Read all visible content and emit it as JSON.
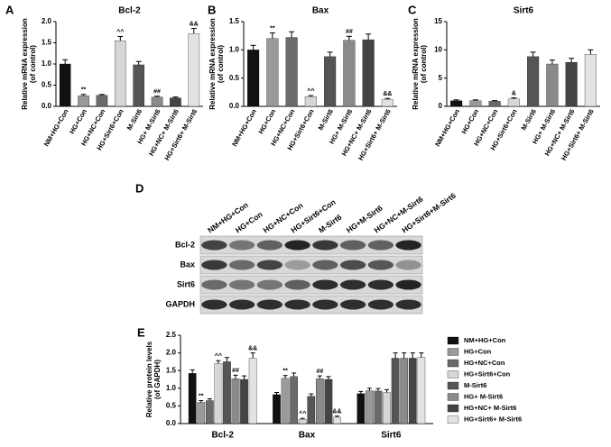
{
  "chart_data": [
    {
      "type": "bar",
      "panel": "A",
      "title": "Bcl-2",
      "ylabel": [
        "Relative mRNA expression",
        "(of control)"
      ],
      "categories": [
        "NM+HG+Con",
        "HG+Con",
        "HG+NC+Con",
        "HG+Sirt6+Con",
        "M-Sirt6",
        "HG+ M-Sirt6",
        "HG+NC+ M-Sirt6",
        "HG+Sirt6+ M-Sirt6"
      ],
      "values": [
        1.0,
        0.25,
        0.26,
        1.55,
        0.98,
        0.22,
        0.2,
        1.72
      ],
      "errors": [
        0.1,
        0.03,
        0.02,
        0.1,
        0.08,
        0.02,
        0.02,
        0.12
      ],
      "annotations": [
        null,
        "**",
        null,
        "^^",
        null,
        "##",
        null,
        "&&"
      ],
      "colors": [
        "#111111",
        "#9a9a9a",
        "#6a6a6a",
        "#d6d6d6",
        "#555555",
        "#8a8a8a",
        "#444444",
        "#e2e2e2"
      ],
      "ylim": [
        0,
        2
      ],
      "yticks": [
        {
          "value": 0,
          "label": "0.0"
        },
        0.5,
        {
          "value": 1,
          "label": "1.0"
        },
        1.5,
        {
          "value": 2,
          "label": "2.0"
        }
      ]
    },
    {
      "type": "bar",
      "panel": "B",
      "title": "Bax",
      "ylabel": [
        "Relative mRNA expression",
        "(of control)"
      ],
      "categories": [
        "NM+HG+Con",
        "HG+Con",
        "HG+NC+Con",
        "HG+Sirt6+Con",
        "M-Sirt6",
        "HG+ M-Sirt6",
        "HG+NC+ M-Sirt6",
        "HG+Sirt6+ M-Sirt6"
      ],
      "values": [
        1.0,
        1.2,
        1.22,
        0.17,
        0.88,
        1.17,
        1.18,
        0.12
      ],
      "errors": [
        0.08,
        0.1,
        0.1,
        0.02,
        0.08,
        0.07,
        0.1,
        0.02
      ],
      "annotations": [
        null,
        "**",
        null,
        "^^",
        null,
        "##",
        null,
        "&&"
      ],
      "colors": [
        "#111111",
        "#9a9a9a",
        "#6a6a6a",
        "#d6d6d6",
        "#555555",
        "#8a8a8a",
        "#444444",
        "#e2e2e2"
      ],
      "ylim": [
        0,
        1.5
      ],
      "yticks": [
        {
          "value": 0,
          "label": "0.0"
        },
        0.5,
        {
          "value": 1,
          "label": "1.0"
        },
        1.5
      ]
    },
    {
      "type": "bar",
      "panel": "C",
      "title": "Sirt6",
      "ylabel": [
        "Relative mRNA expression",
        "(of control)"
      ],
      "categories": [
        "NM+HG+Con",
        "HG+Con",
        "HG+NC+Con",
        "HG+Sirt6+Con",
        "M-Sirt6",
        "HG+ M-Sirt6",
        "HG+NC+ M-Sirt6",
        "HG+Sirt6+ M-Sirt6"
      ],
      "values": [
        1.0,
        1.0,
        0.9,
        1.3,
        8.8,
        7.5,
        7.8,
        9.2
      ],
      "errors": [
        0.15,
        0.15,
        0.12,
        0.2,
        0.8,
        0.7,
        0.7,
        0.8
      ],
      "annotations": [
        null,
        null,
        null,
        "&",
        null,
        null,
        null,
        null
      ],
      "colors": [
        "#111111",
        "#9a9a9a",
        "#6a6a6a",
        "#d6d6d6",
        "#555555",
        "#8a8a8a",
        "#444444",
        "#e2e2e2"
      ],
      "ylim": [
        0,
        15
      ],
      "yticks": [
        0,
        5,
        10,
        15
      ]
    },
    {
      "type": "bar",
      "panel": "E",
      "ylabel": [
        "Relative protein levels",
        "(of GAPDH)"
      ],
      "categories": [
        "Bcl-2",
        "Bax",
        "Sirt6"
      ],
      "series": [
        {
          "name": "NM+HG+Con",
          "color": "#111111",
          "values": [
            1.42,
            0.82,
            0.85
          ],
          "errors": [
            0.1,
            0.06,
            0.06
          ],
          "annotations": [
            null,
            null,
            null
          ]
        },
        {
          "name": "HG+Con",
          "color": "#9a9a9a",
          "values": [
            0.6,
            1.28,
            0.93
          ],
          "errors": [
            0.05,
            0.08,
            0.07
          ],
          "annotations": [
            "**",
            "**",
            null
          ]
        },
        {
          "name": "HG+NC+Con",
          "color": "#6a6a6a",
          "values": [
            0.65,
            1.33,
            0.92
          ],
          "errors": [
            0.05,
            0.1,
            0.07
          ],
          "annotations": [
            null,
            null,
            null
          ]
        },
        {
          "name": "HG+Sirt6+Con",
          "color": "#d6d6d6",
          "values": [
            1.7,
            0.12,
            0.88
          ],
          "errors": [
            0.08,
            0.03,
            0.08
          ],
          "annotations": [
            "^^",
            "^^",
            null
          ]
        },
        {
          "name": "M-Sirt6",
          "color": "#555555",
          "values": [
            1.75,
            0.77,
            1.85
          ],
          "errors": [
            0.12,
            0.07,
            0.15
          ],
          "annotations": [
            null,
            null,
            null
          ]
        },
        {
          "name": "HG+ M-Sirt6",
          "color": "#8a8a8a",
          "values": [
            1.27,
            1.27,
            1.85
          ],
          "errors": [
            0.1,
            0.08,
            0.15
          ],
          "annotations": [
            "##",
            "##",
            null
          ]
        },
        {
          "name": "HG+NC+ M-Sirt6",
          "color": "#444444",
          "values": [
            1.25,
            1.25,
            1.85
          ],
          "errors": [
            0.1,
            0.08,
            0.15
          ],
          "annotations": [
            null,
            null,
            null
          ]
        },
        {
          "name": "HG+Sirt6+ M-Sirt6",
          "color": "#e2e2e2",
          "values": [
            1.85,
            0.18,
            1.87
          ],
          "errors": [
            0.15,
            0.03,
            0.13
          ],
          "annotations": [
            "&&",
            "&&",
            null
          ]
        }
      ],
      "ylim": [
        0,
        2.5
      ],
      "yticks": [
        {
          "value": 0,
          "label": "0.0"
        },
        0.5,
        {
          "value": 1,
          "label": "1.0"
        },
        1.5,
        {
          "value": 2,
          "label": "2.0"
        },
        2.5
      ]
    }
  ],
  "blot": {
    "panel": "D",
    "lanes": [
      "NM+HG+Con",
      "HG+Con",
      "HG+NC+Con",
      "HG+Sirt6+Con",
      "M-Sirt6",
      "HG+M-Sirt6",
      "HG+NC+M-Sirt6",
      "HG+Sirt6+M-Sirt6"
    ],
    "rows": [
      "Bcl-2",
      "Bax",
      "Sirt6",
      "GAPDH"
    ]
  }
}
